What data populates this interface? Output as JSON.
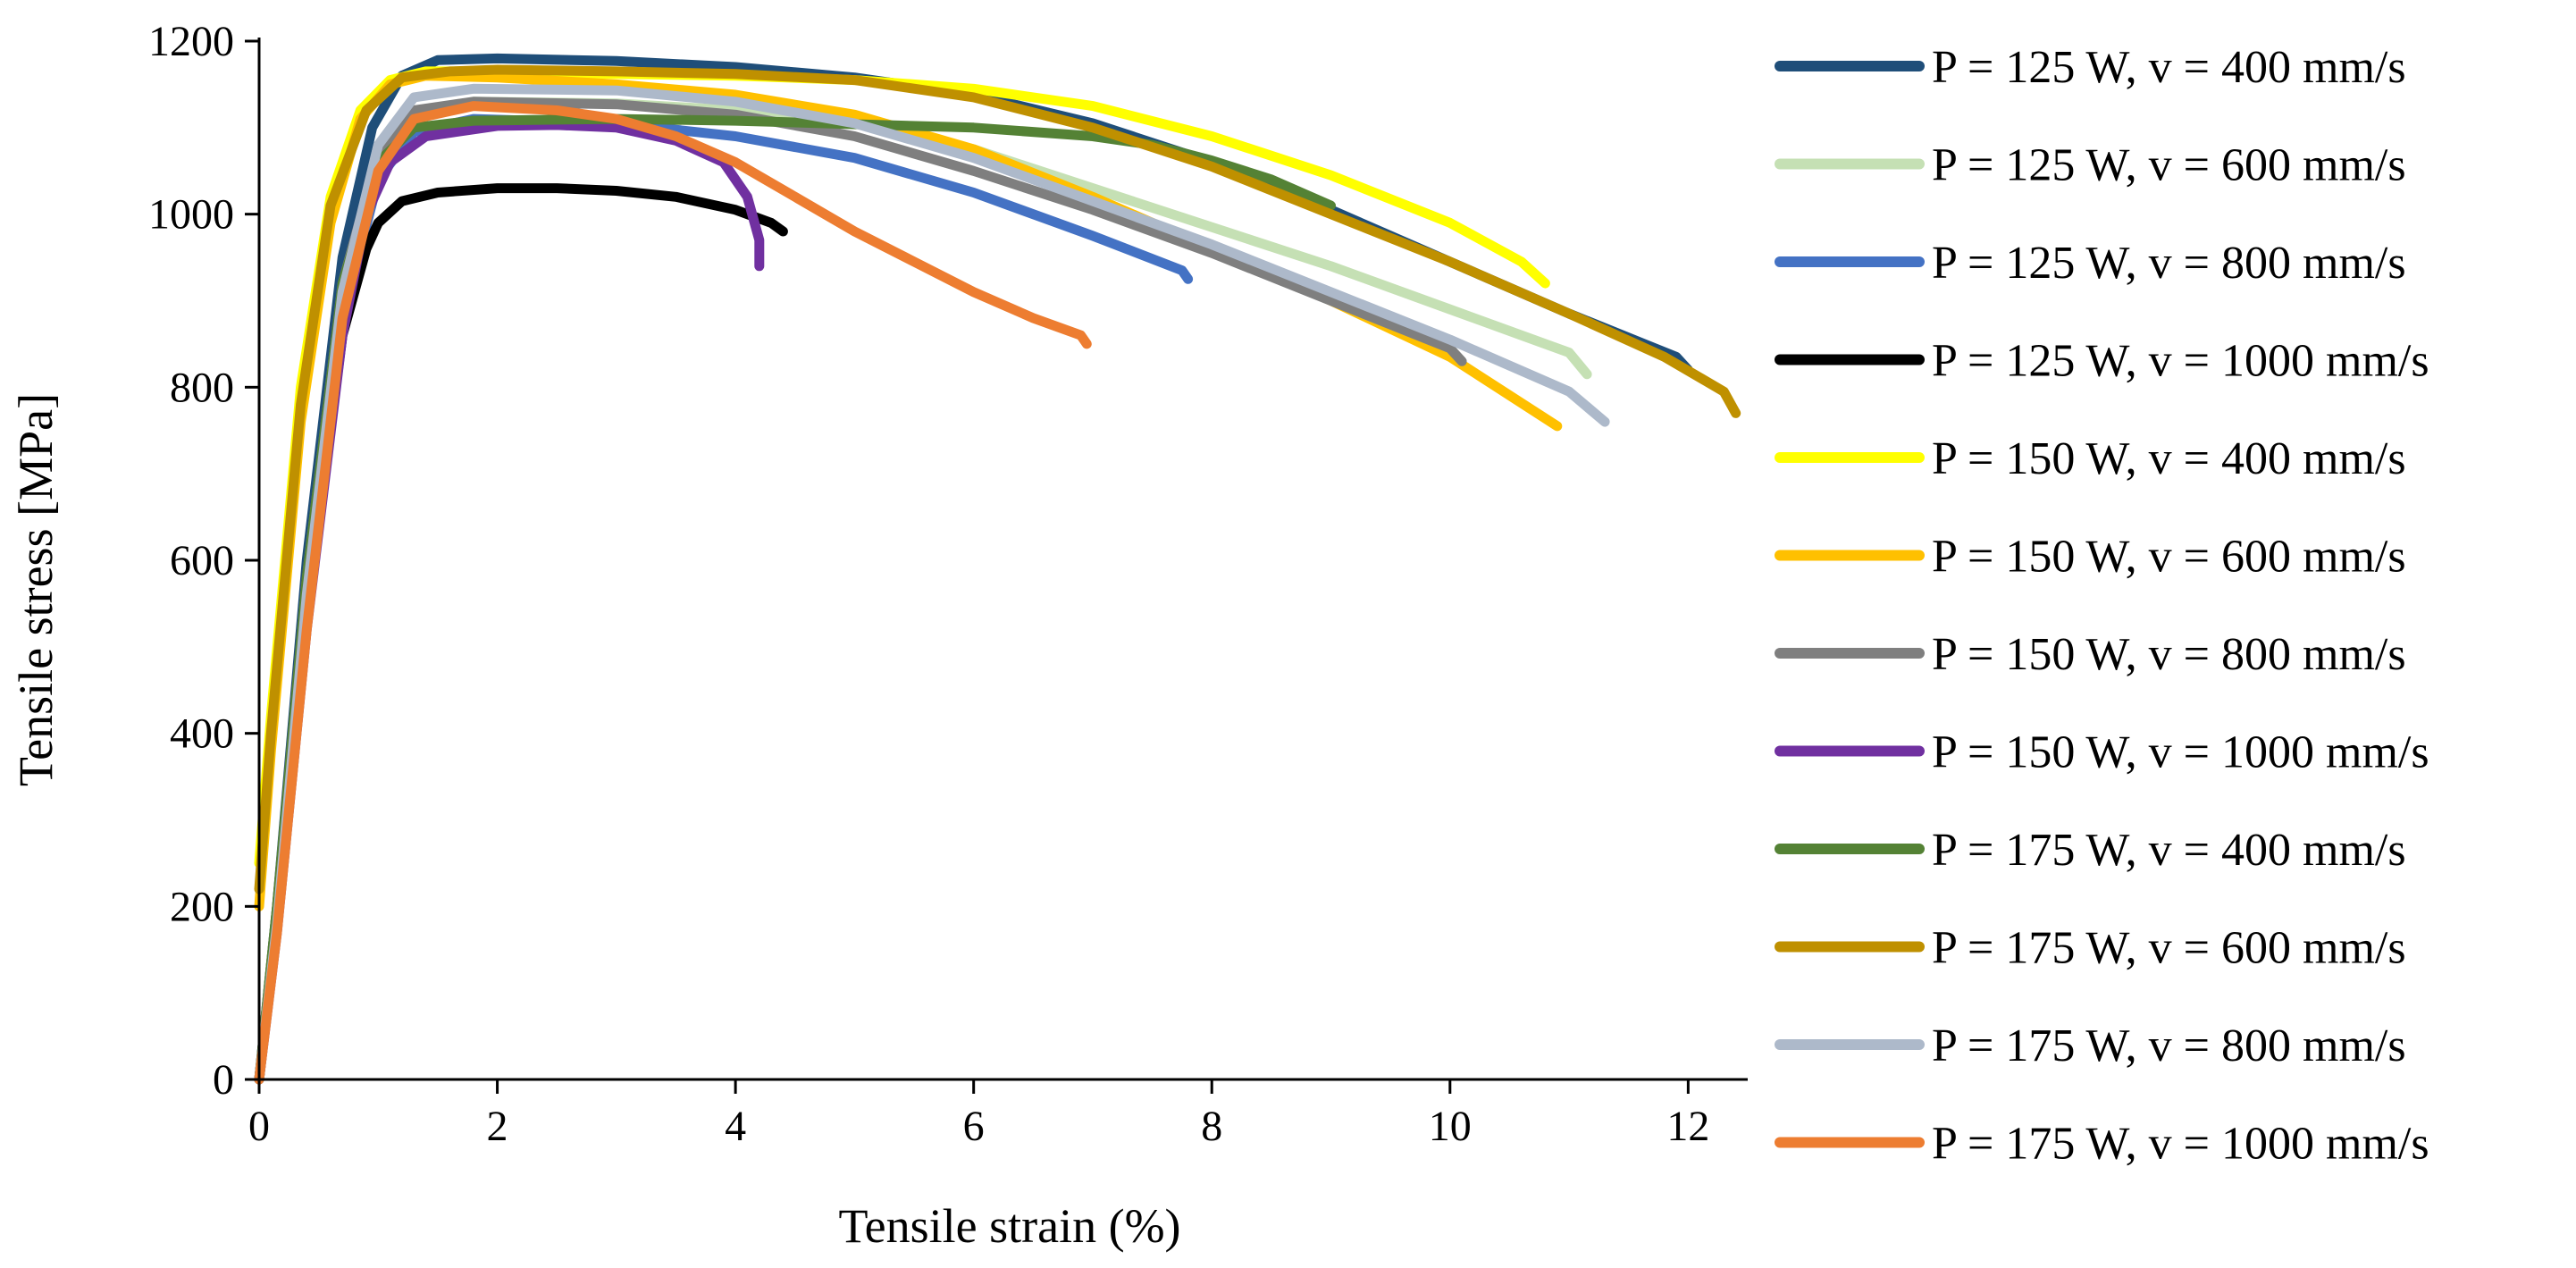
{
  "chart_data": {
    "type": "line",
    "title": "",
    "xlabel": "Tensile strain (%)",
    "ylabel": "Tensile stress [MPa]",
    "xlim": [
      0,
      12.5
    ],
    "ylim": [
      0,
      1200
    ],
    "xticks": [
      "0",
      "2",
      "4",
      "6",
      "8",
      "10",
      "12"
    ],
    "yticks": [
      "0",
      "200",
      "400",
      "600",
      "800",
      "1000",
      "1200"
    ],
    "grid": false,
    "legend_position": "right",
    "series": [
      {
        "name": "P = 125 W, v = 400 mm/s",
        "color": "#1F4E79",
        "x": [
          0,
          0.15,
          0.4,
          0.7,
          0.95,
          1.2,
          1.5,
          2,
          3,
          4,
          5,
          6,
          7,
          8,
          9,
          10,
          11,
          11.9,
          12.0
        ],
        "y": [
          0,
          200,
          600,
          950,
          1100,
          1160,
          1178,
          1180,
          1177,
          1170,
          1158,
          1138,
          1105,
          1060,
          1005,
          945,
          885,
          835,
          820
        ]
      },
      {
        "name": "P = 125 W, v = 600 mm/s",
        "color": "#C5E0B4",
        "x": [
          0,
          0.15,
          0.4,
          0.7,
          1.0,
          1.3,
          1.8,
          3,
          4,
          5,
          6,
          7,
          8,
          9,
          10,
          11,
          11.15
        ],
        "y": [
          0,
          190,
          560,
          900,
          1060,
          1115,
          1130,
          1128,
          1120,
          1105,
          1075,
          1030,
          985,
          940,
          890,
          840,
          815
        ]
      },
      {
        "name": "P = 125 W, v = 800 mm/s",
        "color": "#4472C4",
        "x": [
          0,
          0.15,
          0.4,
          0.7,
          1.0,
          1.3,
          1.8,
          3,
          4,
          5,
          6,
          7,
          7.75,
          7.8
        ],
        "y": [
          0,
          180,
          540,
          880,
          1040,
          1095,
          1110,
          1105,
          1090,
          1065,
          1025,
          975,
          935,
          925
        ]
      },
      {
        "name": "P = 125 W, v = 1000 mm/s",
        "color": "#000000",
        "x": [
          0,
          0.15,
          0.4,
          0.7,
          0.9,
          1.0,
          1.2,
          1.5,
          2,
          2.5,
          3,
          3.5,
          4,
          4.3,
          4.4
        ],
        "y": [
          0,
          180,
          540,
          860,
          960,
          990,
          1015,
          1025,
          1030,
          1030,
          1027,
          1020,
          1005,
          990,
          980
        ]
      },
      {
        "name": "P = 150 W, v = 400 mm/s",
        "color": "#FFFF00",
        "x": [
          0,
          0.1,
          0.35,
          0.6,
          0.85,
          1.1,
          1.4,
          2,
          3,
          4,
          5,
          6,
          7,
          8,
          9,
          10,
          10.6,
          10.8
        ],
        "y": [
          250,
          420,
          800,
          1020,
          1120,
          1155,
          1165,
          1165,
          1162,
          1160,
          1155,
          1145,
          1125,
          1090,
          1045,
          990,
          945,
          920
        ]
      },
      {
        "name": "P = 150 W, v = 600 mm/s",
        "color": "#FFC000",
        "x": [
          0,
          0.1,
          0.35,
          0.6,
          0.85,
          1.1,
          1.4,
          2,
          3,
          4,
          5,
          6,
          7,
          8,
          9,
          10,
          10.9
        ],
        "y": [
          200,
          380,
          760,
          990,
          1110,
          1150,
          1160,
          1158,
          1150,
          1138,
          1115,
          1075,
          1020,
          960,
          900,
          835,
          755
        ]
      },
      {
        "name": "P = 150 W, v = 800 mm/s",
        "color": "#7F7F7F",
        "x": [
          0,
          0.15,
          0.4,
          0.7,
          1.0,
          1.3,
          1.8,
          3,
          4,
          5,
          6,
          7,
          8,
          9,
          10,
          10.1
        ],
        "y": [
          0,
          200,
          580,
          920,
          1070,
          1120,
          1130,
          1127,
          1115,
          1090,
          1050,
          1005,
          955,
          900,
          845,
          830
        ]
      },
      {
        "name": "P = 150 W, v = 1000 mm/s",
        "color": "#7030A0",
        "x": [
          0,
          0.15,
          0.4,
          0.7,
          0.9,
          1.1,
          1.4,
          2,
          2.5,
          3,
          3.5,
          3.9,
          4.1,
          4.2,
          4.2
        ],
        "y": [
          0,
          170,
          520,
          860,
          1000,
          1060,
          1090,
          1102,
          1103,
          1100,
          1085,
          1060,
          1020,
          970,
          940
        ]
      },
      {
        "name": "P = 175 W, v = 400 mm/s",
        "color": "#548235",
        "x": [
          0,
          0.15,
          0.4,
          0.7,
          1.0,
          1.3,
          1.8,
          3,
          4,
          5,
          6,
          7,
          7.5,
          8,
          8.5,
          9
        ],
        "y": [
          0,
          200,
          580,
          920,
          1060,
          1100,
          1108,
          1110,
          1108,
          1104,
          1100,
          1090,
          1080,
          1062,
          1040,
          1010
        ]
      },
      {
        "name": "P = 175 W, v = 600 mm/s",
        "color": "#BF9000",
        "x": [
          0,
          0.1,
          0.35,
          0.6,
          0.9,
          1.2,
          1.6,
          2,
          3,
          4,
          5,
          6,
          7,
          8,
          9,
          10,
          11,
          11.8,
          12.3,
          12.4
        ],
        "y": [
          220,
          400,
          780,
          1010,
          1120,
          1158,
          1165,
          1167,
          1165,
          1162,
          1155,
          1135,
          1100,
          1055,
          1000,
          945,
          885,
          835,
          795,
          770
        ]
      },
      {
        "name": "P = 175 W, v = 800 mm/s",
        "color": "#ADB9CA",
        "x": [
          0,
          0.15,
          0.4,
          0.7,
          1.0,
          1.3,
          1.8,
          3,
          4,
          5,
          6,
          7,
          8,
          9,
          10,
          11,
          11.3
        ],
        "y": [
          0,
          180,
          560,
          910,
          1080,
          1135,
          1145,
          1143,
          1130,
          1105,
          1065,
          1015,
          965,
          910,
          855,
          795,
          760
        ]
      },
      {
        "name": "P = 175 W, v = 1000 mm/s",
        "color": "#ED7D31",
        "x": [
          0,
          0.15,
          0.4,
          0.7,
          1.0,
          1.3,
          1.8,
          2.5,
          3,
          3.5,
          4,
          4.5,
          5,
          5.5,
          6,
          6.5,
          6.9,
          6.95
        ],
        "y": [
          0,
          170,
          520,
          880,
          1050,
          1110,
          1125,
          1120,
          1110,
          1090,
          1060,
          1020,
          980,
          945,
          910,
          880,
          860,
          850
        ]
      }
    ]
  }
}
